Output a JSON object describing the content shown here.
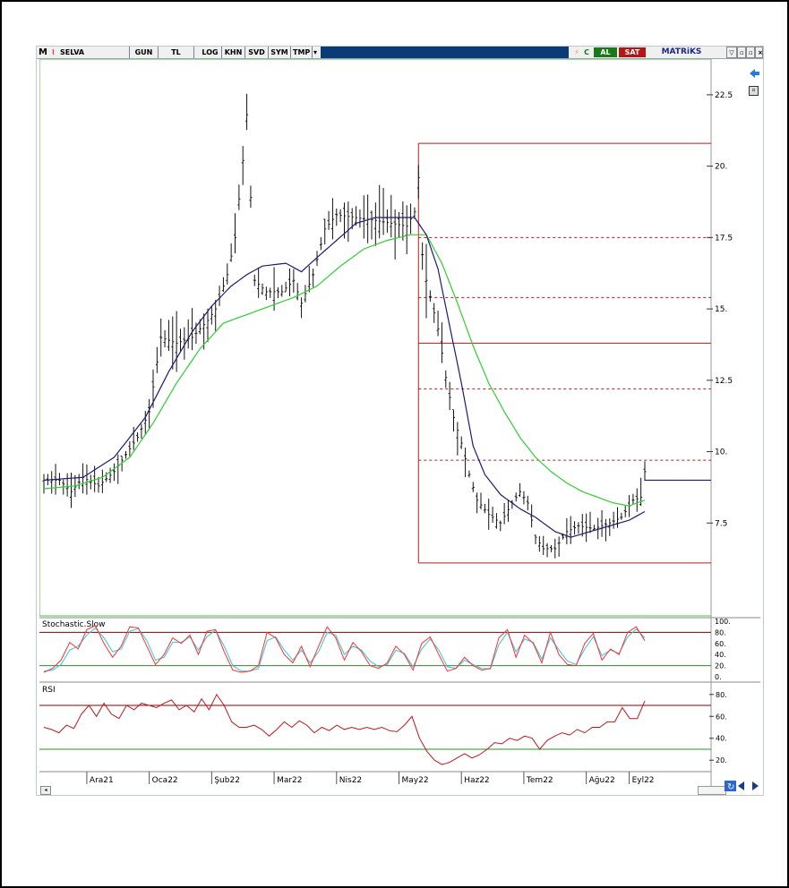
{
  "toolbar": {
    "logo": "M",
    "symbol": "SELVA",
    "period": "GUN",
    "currency": "TL",
    "buttons": [
      "LOG",
      "KHN",
      "SVD",
      "SYM",
      "TMP"
    ],
    "buy_label": "AL",
    "sell_label": "SAT",
    "brand": "MATRiKS",
    "c_label": "C"
  },
  "colors": {
    "price_bars": "#111111",
    "ma_short": "#1b1b7a",
    "ma_long": "#2fcf2f",
    "fib_lines": "#c0181c",
    "stoch_k": "#ff3030",
    "stoch_d": "#30c8d8",
    "rsi": "#c0181c",
    "upper_band": "#8b0000",
    "lower_band": "#2e8b2e",
    "toolbar_blue": "#0a3b74",
    "al_green": "#1a7a1a",
    "sat_red": "#b01818"
  },
  "chart_data": [
    {
      "type": "candlestick",
      "title": "",
      "y_ticks": [
        "22.5",
        "20.",
        "17.5",
        "15.",
        "12.5",
        "10.",
        "7.5"
      ],
      "x_ticks": [
        "Ara21",
        "Oca22",
        "Şub22",
        "Mar22",
        "Nis22",
        "May22",
        "Haz22",
        "Tem22",
        "Ağu22",
        "Eyl22"
      ],
      "ylim": [
        5.0,
        23.5
      ],
      "price_path": [
        [
          0,
          9.0
        ],
        [
          4,
          9.0
        ],
        [
          7,
          8.6
        ],
        [
          10,
          9.1
        ],
        [
          14,
          8.8
        ],
        [
          18,
          9.3
        ],
        [
          21,
          9.9
        ],
        [
          24,
          10.5
        ],
        [
          27,
          11.4
        ],
        [
          30,
          14.0
        ],
        [
          34,
          13.8
        ],
        [
          38,
          14.0
        ],
        [
          42,
          14.6
        ],
        [
          44,
          15.0
        ],
        [
          47,
          16.2
        ],
        [
          49,
          17.5
        ],
        [
          51,
          20.2
        ],
        [
          52,
          21.8
        ],
        [
          54,
          16.0
        ],
        [
          57,
          15.6
        ],
        [
          61,
          15.6
        ],
        [
          64,
          16.0
        ],
        [
          66,
          15.2
        ],
        [
          69,
          16.2
        ],
        [
          72,
          17.8
        ],
        [
          75,
          18.3
        ],
        [
          80,
          18.2
        ],
        [
          85,
          18.1
        ],
        [
          89,
          18.0
        ],
        [
          93,
          17.9
        ],
        [
          95,
          18.4
        ],
        [
          96,
          19.6
        ],
        [
          97,
          16.9
        ],
        [
          98,
          16.0
        ],
        [
          101,
          14.3
        ],
        [
          103,
          12.6
        ],
        [
          105,
          11.2
        ],
        [
          107,
          10.3
        ],
        [
          109,
          9.2
        ],
        [
          111,
          8.3
        ],
        [
          114,
          7.8
        ],
        [
          117,
          7.5
        ],
        [
          120,
          8.2
        ],
        [
          122,
          8.6
        ],
        [
          124,
          8.2
        ],
        [
          126,
          7.0
        ],
        [
          128,
          6.6
        ],
        [
          131,
          6.6
        ],
        [
          134,
          7.2
        ],
        [
          137,
          7.4
        ],
        [
          141,
          7.3
        ],
        [
          145,
          7.5
        ],
        [
          148,
          7.7
        ],
        [
          151,
          8.3
        ],
        [
          153,
          8.4
        ],
        [
          154,
          9.3
        ]
      ],
      "ma_short": [
        [
          0,
          9.0
        ],
        [
          10,
          9.1
        ],
        [
          18,
          9.8
        ],
        [
          26,
          11.2
        ],
        [
          32,
          12.8
        ],
        [
          38,
          14.2
        ],
        [
          43,
          15.1
        ],
        [
          48,
          15.8
        ],
        [
          52,
          16.2
        ],
        [
          56,
          16.5
        ],
        [
          62,
          16.6
        ],
        [
          66,
          16.3
        ],
        [
          70,
          16.8
        ],
        [
          75,
          17.4
        ],
        [
          80,
          18.0
        ],
        [
          85,
          18.2
        ],
        [
          90,
          18.2
        ],
        [
          95,
          18.2
        ],
        [
          98,
          17.6
        ],
        [
          101,
          16.4
        ],
        [
          104,
          14.4
        ],
        [
          107,
          12.4
        ],
        [
          110,
          10.2
        ],
        [
          113,
          9.2
        ],
        [
          117,
          8.5
        ],
        [
          122,
          8.0
        ],
        [
          126,
          7.7
        ],
        [
          131,
          7.2
        ],
        [
          135,
          7.0
        ],
        [
          140,
          7.2
        ],
        [
          145,
          7.4
        ],
        [
          150,
          7.6
        ],
        [
          154,
          7.9
        ]
      ],
      "ma_long": [
        [
          0,
          8.7
        ],
        [
          8,
          8.8
        ],
        [
          15,
          9.1
        ],
        [
          22,
          9.8
        ],
        [
          28,
          11.0
        ],
        [
          34,
          12.4
        ],
        [
          40,
          13.6
        ],
        [
          46,
          14.5
        ],
        [
          52,
          14.8
        ],
        [
          58,
          15.1
        ],
        [
          64,
          15.4
        ],
        [
          70,
          15.8
        ],
        [
          76,
          16.5
        ],
        [
          82,
          17.1
        ],
        [
          88,
          17.4
        ],
        [
          94,
          17.6
        ],
        [
          98,
          17.6
        ],
        [
          102,
          16.6
        ],
        [
          106,
          15.2
        ],
        [
          110,
          13.7
        ],
        [
          114,
          12.4
        ],
        [
          118,
          11.4
        ],
        [
          122,
          10.5
        ],
        [
          126,
          9.8
        ],
        [
          130,
          9.3
        ],
        [
          134,
          8.9
        ],
        [
          138,
          8.6
        ],
        [
          142,
          8.4
        ],
        [
          146,
          8.2
        ],
        [
          150,
          8.1
        ],
        [
          154,
          8.3
        ]
      ],
      "fib_levels": [
        20.8,
        17.5,
        15.4,
        13.8,
        12.2,
        9.7,
        6.1
      ],
      "fib_solid": [
        20.8,
        13.8,
        6.1
      ],
      "fib_start_index": 96,
      "last_price_marker": 9.0,
      "x_label_index": [
        11,
        27,
        43,
        59,
        75,
        91,
        107,
        123,
        139,
        150
      ]
    },
    {
      "type": "line",
      "name": "Stochastic Slow",
      "label": "Stochastic.Slow",
      "y_ticks": [
        "100.",
        "80.",
        "60.",
        "40.",
        "20.",
        "0."
      ],
      "ylim": [
        0,
        100
      ],
      "bands": [
        80,
        20
      ],
      "k": [
        8,
        15,
        30,
        62,
        50,
        85,
        92,
        60,
        35,
        55,
        90,
        88,
        55,
        22,
        40,
        70,
        60,
        75,
        40,
        82,
        85,
        45,
        12,
        8,
        10,
        20,
        80,
        70,
        40,
        25,
        55,
        18,
        55,
        90,
        70,
        30,
        62,
        45,
        20,
        15,
        25,
        55,
        40,
        12,
        60,
        72,
        40,
        10,
        15,
        35,
        20,
        12,
        15,
        70,
        85,
        35,
        75,
        60,
        25,
        80,
        40,
        22,
        20,
        60,
        78,
        30,
        50,
        40,
        80,
        90,
        65
      ],
      "d": [
        10,
        12,
        22,
        48,
        55,
        75,
        88,
        70,
        45,
        50,
        82,
        87,
        65,
        30,
        35,
        62,
        62,
        72,
        48,
        72,
        84,
        55,
        20,
        10,
        10,
        15,
        65,
        72,
        48,
        30,
        48,
        25,
        45,
        80,
        75,
        40,
        55,
        48,
        28,
        18,
        22,
        48,
        42,
        18,
        50,
        68,
        48,
        18,
        15,
        30,
        22,
        15,
        14,
        58,
        80,
        45,
        68,
        62,
        32,
        70,
        48,
        28,
        22,
        50,
        72,
        38,
        48,
        42,
        72,
        86,
        70
      ]
    },
    {
      "type": "line",
      "name": "RSI",
      "label": "RSI",
      "y_ticks": [
        "80.",
        "60.",
        "40.",
        "20."
      ],
      "ylim": [
        12,
        88
      ],
      "bands": [
        70,
        30
      ],
      "values": [
        50,
        48,
        45,
        52,
        49,
        62,
        70,
        60,
        72,
        62,
        58,
        70,
        66,
        72,
        70,
        68,
        72,
        75,
        66,
        70,
        64,
        76,
        66,
        80,
        70,
        55,
        50,
        50,
        52,
        48,
        42,
        48,
        55,
        50,
        56,
        52,
        45,
        50,
        47,
        52,
        48,
        50,
        48,
        50,
        48,
        50,
        47,
        46,
        52,
        60,
        40,
        28,
        20,
        16,
        18,
        22,
        26,
        22,
        25,
        30,
        36,
        35,
        40,
        38,
        42,
        40,
        30,
        38,
        42,
        45,
        43,
        48,
        45,
        50,
        50,
        55,
        55,
        68,
        58,
        58,
        74
      ]
    }
  ]
}
